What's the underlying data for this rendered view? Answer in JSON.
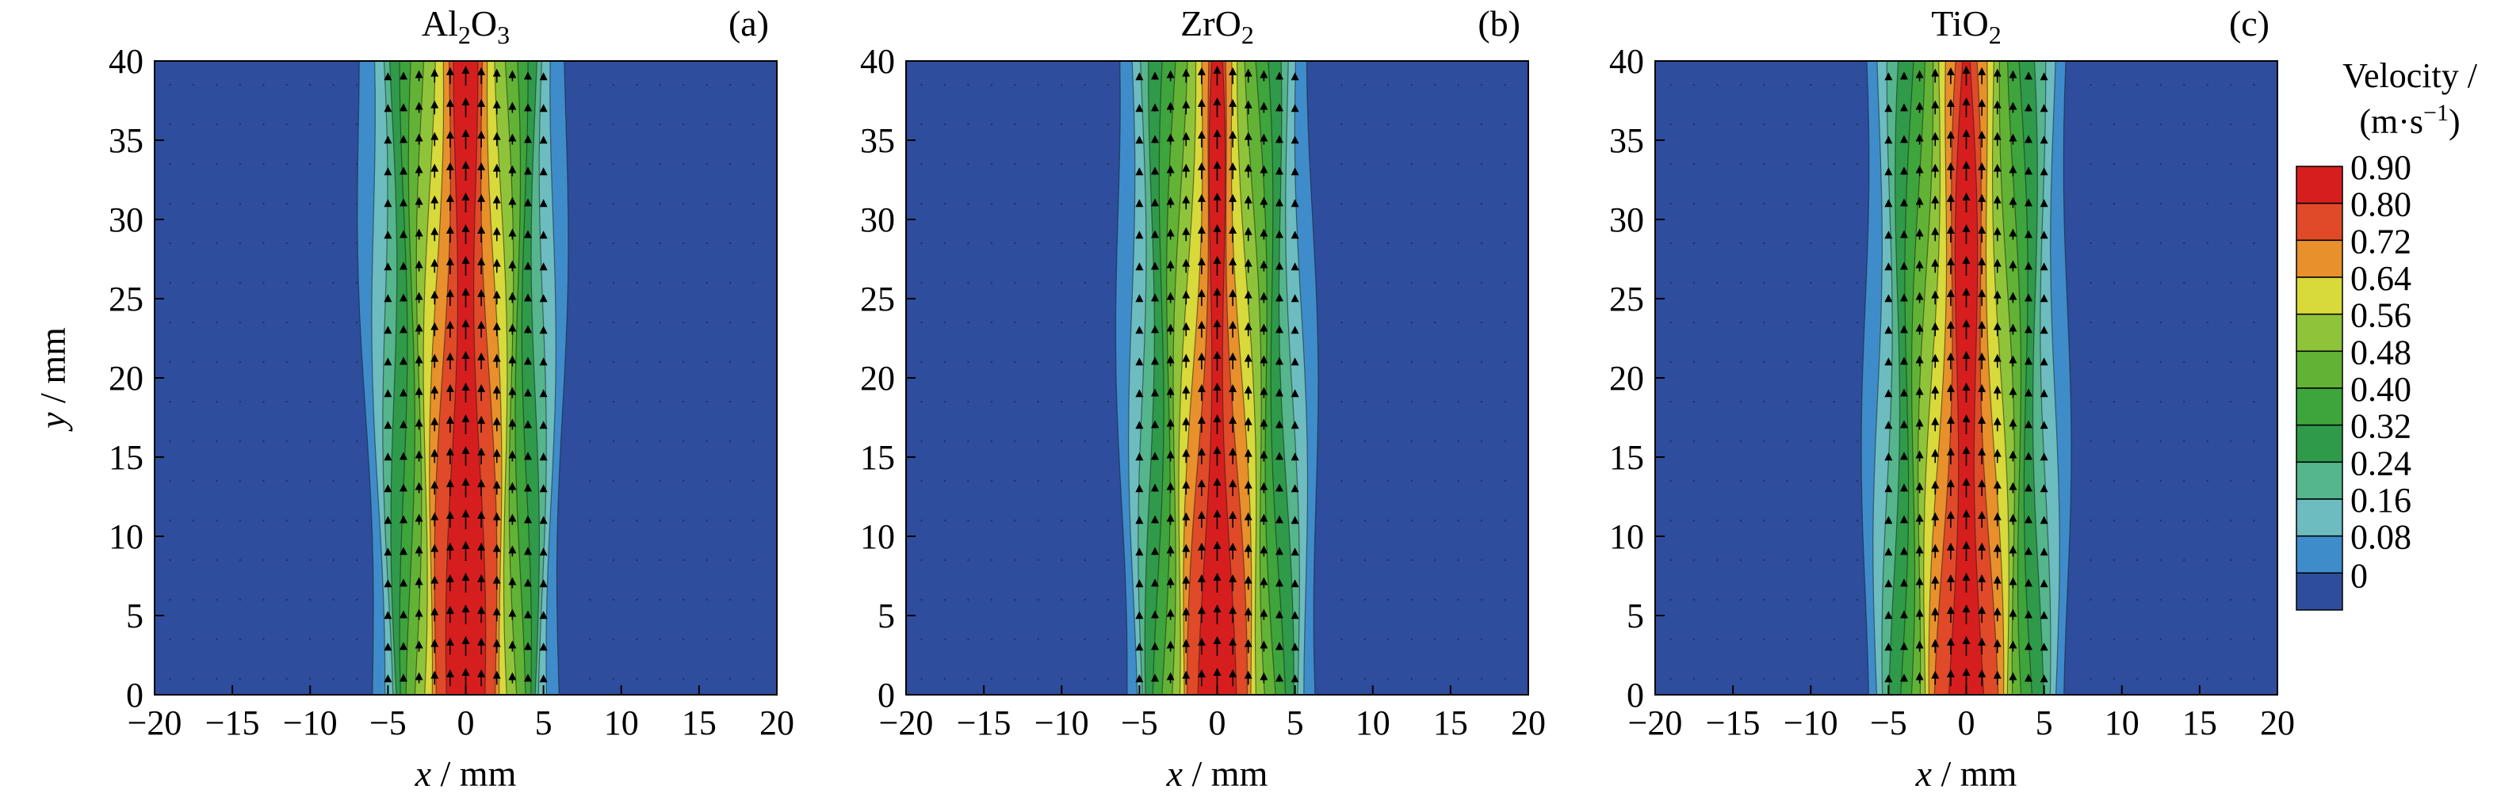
{
  "figure": {
    "colorbar": {
      "title_line1": "Velocity /",
      "title_line2_parts": [
        "(m·s",
        "−1",
        ")"
      ],
      "levels": [
        "0.90",
        "0.80",
        "0.72",
        "0.64",
        "0.56",
        "0.48",
        "0.40",
        "0.32",
        "0.24",
        "0.16",
        "0.08",
        "0"
      ],
      "colors": [
        "#d71e1e",
        "#e04a28",
        "#e8902c",
        "#d8d93a",
        "#8fc43a",
        "#62b335",
        "#3ea43c",
        "#2f9a4a",
        "#55b58c",
        "#6cbcc0",
        "#3f8ccb",
        "#2e4d9c"
      ]
    }
  },
  "chart_data": [
    {
      "type": "heatmap",
      "panel_letter": "(a)",
      "title_parts": [
        [
          "Al",
          ""
        ],
        [
          "2",
          "sub"
        ],
        [
          "O",
          ""
        ],
        [
          "3",
          "sub"
        ]
      ],
      "xlabel_var": "x",
      "xlabel_unit": " / mm",
      "ylabel_var": "y",
      "ylabel_unit": " / mm",
      "xlim": [
        -20,
        20
      ],
      "ylim": [
        0,
        40
      ],
      "xticks": [
        "−20",
        "−15",
        "−10",
        "−5",
        "0",
        "5",
        "10",
        "15",
        "20"
      ],
      "yticks": [
        "0",
        "5",
        "10",
        "15",
        "20",
        "25",
        "30",
        "35",
        "40"
      ],
      "field": "velocity magnitude (m·s−1) with velocity vectors pointing +y",
      "core_max": 0.9,
      "jet_edge_x_at_y0": [
        -6,
        6
      ],
      "jet_edge_x_at_y40": [
        -7,
        6.5
      ],
      "red_core_halfwidth_at_y0": 2,
      "red_core_halfwidth_at_y40": 1
    },
    {
      "type": "heatmap",
      "panel_letter": "(b)",
      "title_parts": [
        [
          "ZrO",
          ""
        ],
        [
          "2",
          "sub"
        ]
      ],
      "xlabel_var": "x",
      "xlabel_unit": " / mm",
      "xlim": [
        -20,
        20
      ],
      "ylim": [
        0,
        40
      ],
      "xticks": [
        "−20",
        "−15",
        "−10",
        "−5",
        "0",
        "5",
        "10",
        "15",
        "20"
      ],
      "yticks": [
        "0",
        "5",
        "10",
        "15",
        "20",
        "25",
        "30",
        "35",
        "40"
      ],
      "field": "velocity magnitude (m·s−1) with velocity vectors pointing +y",
      "core_max": 0.9,
      "jet_edge_x_at_y0": [
        -6,
        6.5
      ],
      "jet_edge_x_at_y40": [
        -6.5,
        6
      ],
      "red_core_halfwidth_at_y0": 1.8,
      "red_core_halfwidth_at_y40": 0.3
    },
    {
      "type": "heatmap",
      "panel_letter": "(c)",
      "title_parts": [
        [
          "TiO",
          ""
        ],
        [
          "2",
          "sub"
        ]
      ],
      "xlabel_var": "x",
      "xlabel_unit": " / mm",
      "xlim": [
        -20,
        20
      ],
      "ylim": [
        0,
        40
      ],
      "xticks": [
        "−20",
        "−15",
        "−10",
        "−5",
        "0",
        "5",
        "10",
        "15",
        "20"
      ],
      "yticks": [
        "0",
        "5",
        "10",
        "15",
        "20",
        "25",
        "30",
        "35",
        "40"
      ],
      "field": "velocity magnitude (m·s−1) with velocity vectors pointing +y",
      "core_max": 0.9,
      "jet_edge_x_at_y0": [
        -6.5,
        6.5
      ],
      "jet_edge_x_at_y40": [
        -6.5,
        6.5
      ],
      "red_core_halfwidth_at_y0": 1.8,
      "red_core_halfwidth_at_y40": 0.5
    }
  ]
}
